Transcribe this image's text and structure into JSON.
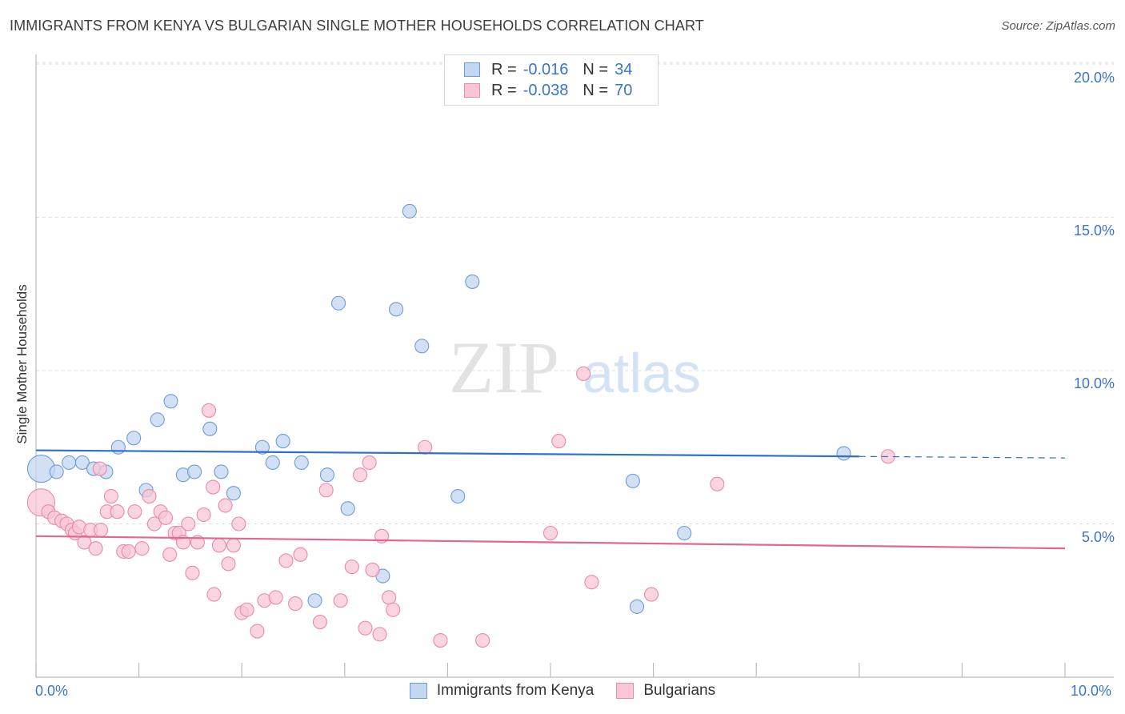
{
  "header": {
    "title": "IMMIGRANTS FROM KENYA VS BULGARIAN SINGLE MOTHER HOUSEHOLDS CORRELATION CHART",
    "source": "Source: ZipAtlas.com"
  },
  "watermark": {
    "zip": "ZIP",
    "atlas": "atlas"
  },
  "legend": {
    "r_label": "R =",
    "n_label": "N =",
    "series": [
      {
        "r": "-0.016",
        "n": "34"
      },
      {
        "r": "-0.038",
        "n": "70"
      }
    ]
  },
  "axis_labels": {
    "x_min": "0.0%",
    "x_max": "10.0%",
    "y_ticks": [
      "20.0%",
      "15.0%",
      "10.0%",
      "5.0%"
    ]
  },
  "colors": {
    "blue_fill": "#c3d6f2",
    "blue_stroke": "#6d9bd8",
    "blue_line": "#2f6fc9",
    "pink_fill": "#f8c6d6",
    "pink_stroke": "#e88aa9",
    "pink_line": "#e2668f",
    "grid": "#dddddd",
    "tick_text": "#3a74c9"
  },
  "chart_data": {
    "type": "scatter",
    "title": "IMMIGRANTS FROM KENYA VS BULGARIAN SINGLE MOTHER HOUSEHOLDS CORRELATION CHART",
    "xlabel": "",
    "ylabel": "Single Mother Households",
    "xlim": [
      0,
      10
    ],
    "ylim": [
      0,
      20.5
    ],
    "x_unit": "%",
    "y_unit": "%",
    "y_gridlines": [
      5,
      10,
      15,
      20
    ],
    "legend_position": "top-center",
    "series": [
      {
        "name": "Immigrants from Kenya",
        "color": "blue",
        "r": -0.016,
        "n": 34,
        "trend": {
          "x": [
            0.0,
            8.0
          ],
          "y": [
            7.4,
            7.2
          ],
          "dashed_extension_to_x": 10.0
        },
        "points": [
          {
            "x": 0.05,
            "y": 6.8,
            "big": true
          },
          {
            "x": 0.2,
            "y": 6.7
          },
          {
            "x": 0.32,
            "y": 7.0
          },
          {
            "x": 0.45,
            "y": 7.0
          },
          {
            "x": 0.56,
            "y": 6.8
          },
          {
            "x": 0.68,
            "y": 6.7
          },
          {
            "x": 0.8,
            "y": 7.5
          },
          {
            "x": 0.95,
            "y": 7.8
          },
          {
            "x": 1.07,
            "y": 6.1
          },
          {
            "x": 1.18,
            "y": 8.4
          },
          {
            "x": 1.31,
            "y": 9.0
          },
          {
            "x": 1.43,
            "y": 6.6
          },
          {
            "x": 1.54,
            "y": 6.7
          },
          {
            "x": 1.69,
            "y": 8.1
          },
          {
            "x": 1.8,
            "y": 6.7
          },
          {
            "x": 1.92,
            "y": 6.0
          },
          {
            "x": 2.2,
            "y": 7.5
          },
          {
            "x": 2.3,
            "y": 7.0
          },
          {
            "x": 2.4,
            "y": 7.7
          },
          {
            "x": 2.58,
            "y": 7.0
          },
          {
            "x": 2.71,
            "y": 2.5
          },
          {
            "x": 2.83,
            "y": 6.6
          },
          {
            "x": 2.94,
            "y": 12.2
          },
          {
            "x": 3.03,
            "y": 5.5
          },
          {
            "x": 3.37,
            "y": 3.3
          },
          {
            "x": 3.5,
            "y": 12.0
          },
          {
            "x": 3.63,
            "y": 15.2
          },
          {
            "x": 3.75,
            "y": 10.8
          },
          {
            "x": 4.1,
            "y": 5.9
          },
          {
            "x": 4.24,
            "y": 12.9
          },
          {
            "x": 5.8,
            "y": 6.4
          },
          {
            "x": 5.84,
            "y": 2.3
          },
          {
            "x": 6.3,
            "y": 4.7
          },
          {
            "x": 7.85,
            "y": 7.3
          }
        ]
      },
      {
        "name": "Bulgarians",
        "color": "pink",
        "r": -0.038,
        "n": 70,
        "trend": {
          "x": [
            0.0,
            10.0
          ],
          "y": [
            4.6,
            4.2
          ]
        },
        "points": [
          {
            "x": 0.05,
            "y": 5.7,
            "big": true
          },
          {
            "x": 0.12,
            "y": 5.4
          },
          {
            "x": 0.18,
            "y": 5.2
          },
          {
            "x": 0.25,
            "y": 5.1
          },
          {
            "x": 0.3,
            "y": 5.0
          },
          {
            "x": 0.35,
            "y": 4.8
          },
          {
            "x": 0.38,
            "y": 4.7
          },
          {
            "x": 0.42,
            "y": 4.9
          },
          {
            "x": 0.47,
            "y": 4.4
          },
          {
            "x": 0.53,
            "y": 4.8
          },
          {
            "x": 0.58,
            "y": 4.2
          },
          {
            "x": 0.63,
            "y": 4.8
          },
          {
            "x": 0.69,
            "y": 5.4
          },
          {
            "x": 0.73,
            "y": 5.9
          },
          {
            "x": 0.79,
            "y": 5.4
          },
          {
            "x": 0.85,
            "y": 4.1
          },
          {
            "x": 0.9,
            "y": 4.1
          },
          {
            "x": 0.96,
            "y": 5.4
          },
          {
            "x": 1.03,
            "y": 4.2
          },
          {
            "x": 1.1,
            "y": 5.9
          },
          {
            "x": 1.15,
            "y": 5.0
          },
          {
            "x": 1.21,
            "y": 5.4
          },
          {
            "x": 1.26,
            "y": 5.2
          },
          {
            "x": 1.3,
            "y": 4.0
          },
          {
            "x": 1.35,
            "y": 4.7
          },
          {
            "x": 1.39,
            "y": 4.7
          },
          {
            "x": 1.43,
            "y": 4.4
          },
          {
            "x": 1.48,
            "y": 5.0
          },
          {
            "x": 1.52,
            "y": 3.4
          },
          {
            "x": 1.57,
            "y": 4.4
          },
          {
            "x": 1.63,
            "y": 5.3
          },
          {
            "x": 1.68,
            "y": 8.7
          },
          {
            "x": 1.72,
            "y": 6.2
          },
          {
            "x": 1.78,
            "y": 4.3
          },
          {
            "x": 1.84,
            "y": 5.6
          },
          {
            "x": 1.87,
            "y": 3.7
          },
          {
            "x": 1.92,
            "y": 4.3
          },
          {
            "x": 1.97,
            "y": 5.0
          },
          {
            "x": 2.0,
            "y": 2.1
          },
          {
            "x": 2.05,
            "y": 2.2
          },
          {
            "x": 2.15,
            "y": 1.5
          },
          {
            "x": 2.22,
            "y": 2.5
          },
          {
            "x": 2.33,
            "y": 2.6
          },
          {
            "x": 2.43,
            "y": 3.8
          },
          {
            "x": 2.52,
            "y": 2.4
          },
          {
            "x": 2.57,
            "y": 4.0
          },
          {
            "x": 2.76,
            "y": 1.8
          },
          {
            "x": 2.82,
            "y": 6.1
          },
          {
            "x": 2.96,
            "y": 2.5
          },
          {
            "x": 3.07,
            "y": 3.6
          },
          {
            "x": 3.15,
            "y": 6.6
          },
          {
            "x": 3.2,
            "y": 1.6
          },
          {
            "x": 3.24,
            "y": 7.0
          },
          {
            "x": 3.27,
            "y": 3.5
          },
          {
            "x": 3.34,
            "y": 1.4
          },
          {
            "x": 3.36,
            "y": 4.6
          },
          {
            "x": 3.43,
            "y": 2.6
          },
          {
            "x": 3.47,
            "y": 2.2
          },
          {
            "x": 3.78,
            "y": 7.5
          },
          {
            "x": 3.93,
            "y": 1.2
          },
          {
            "x": 4.34,
            "y": 1.2
          },
          {
            "x": 5.0,
            "y": 4.7
          },
          {
            "x": 5.08,
            "y": 7.7
          },
          {
            "x": 5.32,
            "y": 9.9
          },
          {
            "x": 5.4,
            "y": 3.1
          },
          {
            "x": 5.98,
            "y": 2.7
          },
          {
            "x": 6.62,
            "y": 6.3
          },
          {
            "x": 8.28,
            "y": 7.2
          },
          {
            "x": 1.73,
            "y": 2.7
          },
          {
            "x": 0.62,
            "y": 6.8
          }
        ]
      }
    ]
  }
}
